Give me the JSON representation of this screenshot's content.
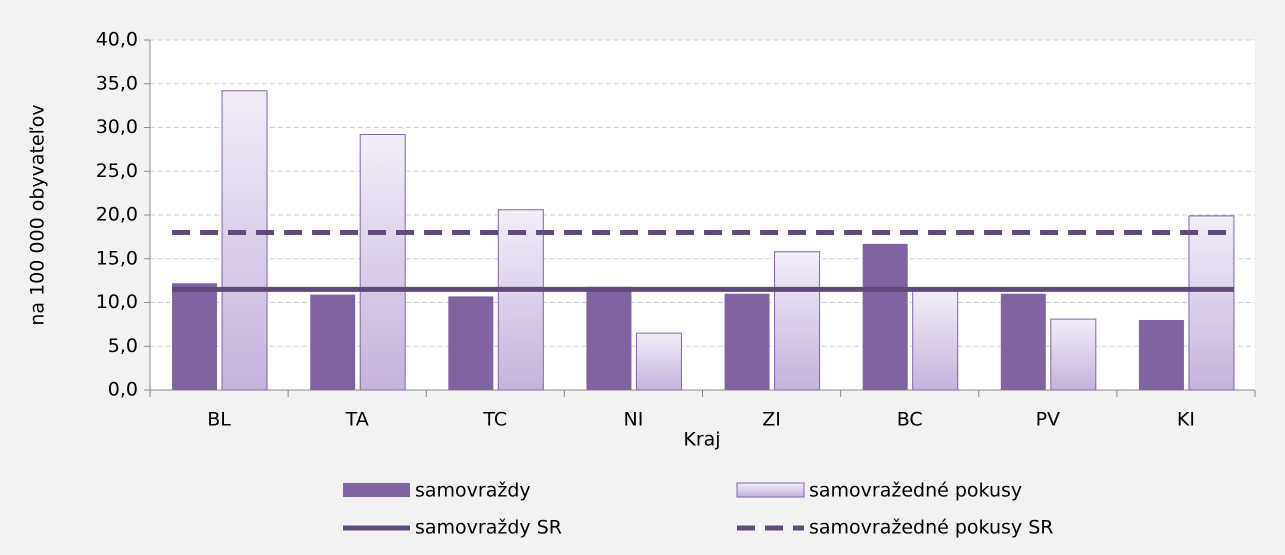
{
  "chart_data": {
    "type": "bar",
    "y_label": "na 100 000 obyvateľov",
    "x_label": "Kraj",
    "categories": [
      "BL",
      "TA",
      "TC",
      "NI",
      "ZI",
      "BC",
      "PV",
      "KI"
    ],
    "series": [
      {
        "name": "samovraždy",
        "color": "#8064a2",
        "values": [
          12.2,
          10.9,
          10.7,
          11.8,
          11.0,
          16.7,
          11.0,
          8.0
        ]
      },
      {
        "name": "samovražedné pokusy",
        "color": "#d9cde9",
        "values": [
          34.2,
          29.2,
          20.6,
          6.5,
          15.8,
          11.4,
          8.1,
          19.9
        ]
      }
    ],
    "reference_lines": [
      {
        "name": "samovraždy SR",
        "value": 11.5,
        "color": "#604a7b",
        "style": "solid"
      },
      {
        "name": "samovražedné pokusy SR",
        "value": 18.0,
        "color": "#604a7b",
        "style": "dashed"
      }
    ],
    "ylim": [
      0,
      40
    ],
    "yticks": [
      {
        "value": 0,
        "label": "0,0"
      },
      {
        "value": 5,
        "label": "5,0"
      },
      {
        "value": 10,
        "label": "10,0"
      },
      {
        "value": 15,
        "label": "15,0"
      },
      {
        "value": 20,
        "label": "20,0"
      },
      {
        "value": 25,
        "label": "25,0"
      },
      {
        "value": 30,
        "label": "30,0"
      },
      {
        "value": 35,
        "label": "35,0"
      },
      {
        "value": 40,
        "label": "40,0"
      }
    ],
    "grid": true,
    "legend": "bottom"
  }
}
